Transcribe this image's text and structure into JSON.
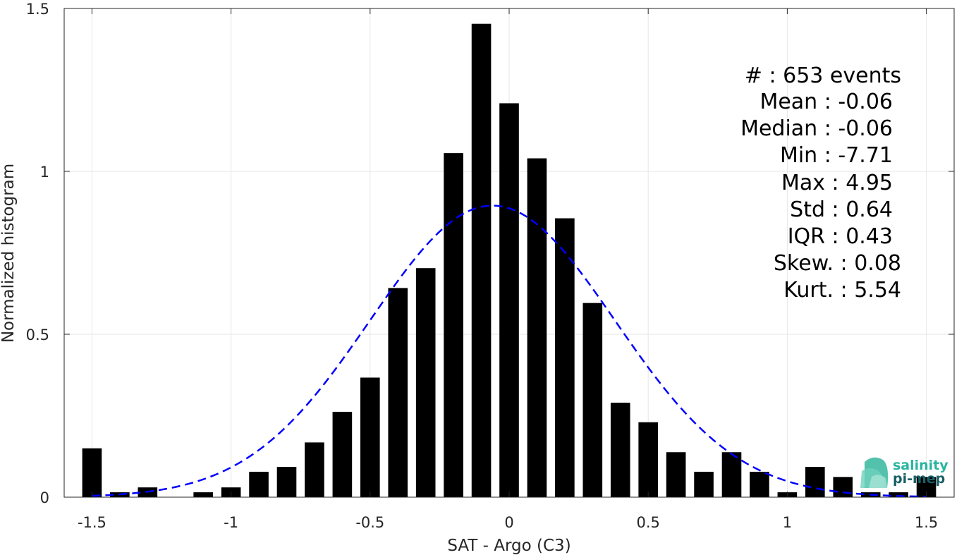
{
  "chart_data": {
    "type": "bar",
    "xlabel": "SAT - Argo (C3)",
    "ylabel": "Normalized histogram",
    "xlim": [
      -1.6,
      1.6
    ],
    "ylim": [
      0,
      1.5
    ],
    "xticks": [
      -1.5,
      -1,
      -0.5,
      0,
      0.5,
      1,
      1.5
    ],
    "xtick_labels": [
      "-1.5",
      "-1",
      "-0.5",
      "0",
      "0.5",
      "1",
      "1.5"
    ],
    "yticks": [
      0,
      0.5,
      1,
      1.5
    ],
    "ytick_labels": [
      "0",
      "0.5",
      "1",
      "1.5"
    ],
    "grid": true,
    "bar_color": "#000000",
    "bar_width": 0.07,
    "bars": [
      {
        "x": -1.5,
        "y": 0.15
      },
      {
        "x": -1.4,
        "y": 0.015
      },
      {
        "x": -1.3,
        "y": 0.03
      },
      {
        "x": -1.2,
        "y": 0.0
      },
      {
        "x": -1.1,
        "y": 0.015
      },
      {
        "x": -1.0,
        "y": 0.03
      },
      {
        "x": -0.9,
        "y": 0.078
      },
      {
        "x": -0.8,
        "y": 0.093
      },
      {
        "x": -0.7,
        "y": 0.168
      },
      {
        "x": -0.6,
        "y": 0.262
      },
      {
        "x": -0.5,
        "y": 0.367
      },
      {
        "x": -0.4,
        "y": 0.642
      },
      {
        "x": -0.3,
        "y": 0.703
      },
      {
        "x": -0.2,
        "y": 1.056
      },
      {
        "x": -0.1,
        "y": 1.453
      },
      {
        "x": 0.0,
        "y": 1.209
      },
      {
        "x": 0.1,
        "y": 1.04
      },
      {
        "x": 0.2,
        "y": 0.856
      },
      {
        "x": 0.3,
        "y": 0.596
      },
      {
        "x": 0.4,
        "y": 0.29
      },
      {
        "x": 0.5,
        "y": 0.23
      },
      {
        "x": 0.6,
        "y": 0.138
      },
      {
        "x": 0.7,
        "y": 0.078
      },
      {
        "x": 0.8,
        "y": 0.138
      },
      {
        "x": 0.9,
        "y": 0.078
      },
      {
        "x": 1.0,
        "y": 0.015
      },
      {
        "x": 1.1,
        "y": 0.093
      },
      {
        "x": 1.2,
        "y": 0.062
      },
      {
        "x": 1.3,
        "y": 0.015
      },
      {
        "x": 1.4,
        "y": 0.015
      },
      {
        "x": 1.5,
        "y": 0.062
      }
    ],
    "fit_curve": {
      "style": "dashed",
      "color": "#0000ff",
      "mean": -0.06,
      "std": 0.44,
      "peak": 0.895,
      "x_range": [
        -1.5,
        1.5
      ]
    },
    "stats": [
      "#  : 653 events",
      "Mean : -0.06",
      "Median : -0.06",
      "Min : -7.71",
      "Max : 4.95",
      "Std : 0.64",
      "IQR : 0.43",
      "Skew. : 0.08",
      "Kurt. : 5.54"
    ]
  },
  "logo": {
    "line1": "salinity",
    "line2": "pi-mep",
    "color1": "#2ab5a0",
    "color2": "#1a5f66"
  }
}
